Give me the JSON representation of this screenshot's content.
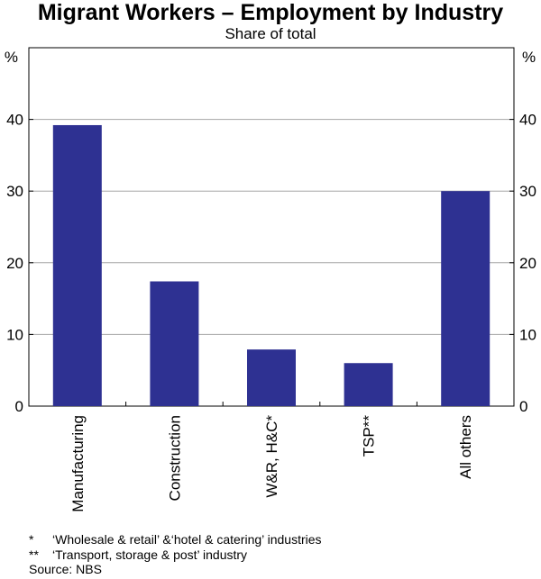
{
  "chart_data": {
    "type": "bar",
    "title": "Migrant Workers – Employment by Industry",
    "subtitle": "Share of total",
    "y_unit_left": "%",
    "y_unit_right": "%",
    "categories": [
      "Manufacturing",
      "Construction",
      "W&R, H&C*",
      "TSP**",
      "All others"
    ],
    "values": [
      39.2,
      17.4,
      7.9,
      6.0,
      30.0
    ],
    "ylim": [
      0,
      50
    ],
    "yticks": [
      0,
      10,
      20,
      30,
      40
    ],
    "grid": true,
    "bar_color": "#2e3192"
  },
  "notes": [
    {
      "mark": "*",
      "text": "‘Wholesale & retail’ &‘hotel & catering’ industries"
    },
    {
      "mark": "**",
      "text": "‘Transport, storage & post’ industry"
    }
  ],
  "source": "Source: NBS"
}
